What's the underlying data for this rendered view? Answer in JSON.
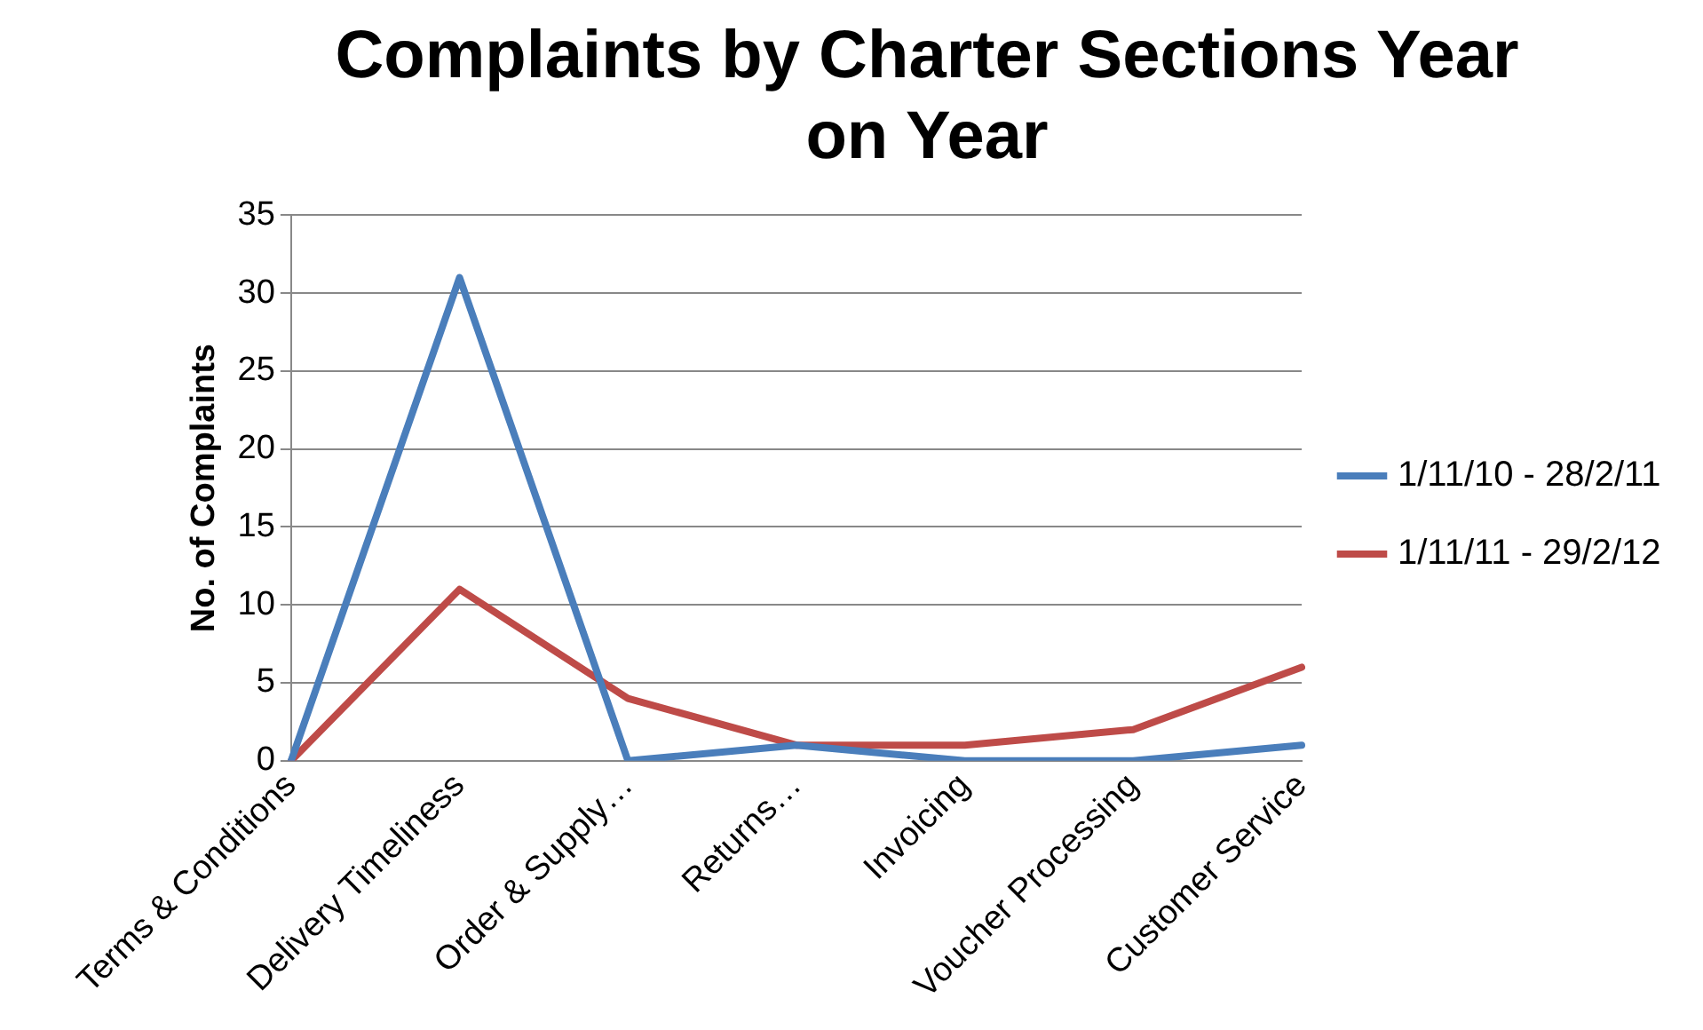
{
  "chart_data": {
    "type": "line",
    "title": [
      "Complaints by Charter Sections Year",
      "on Year"
    ],
    "ylabel": "No. of Complaints",
    "categories": [
      "Terms & Conditions",
      "Delivery Timeliness",
      "Order & Supply…",
      "Returns…",
      "Invoicing",
      "Voucher Processing",
      "Customer Service"
    ],
    "series": [
      {
        "name": "1/11/10 - 28/2/11",
        "color": "#4a7ebb",
        "values": [
          0,
          31,
          0,
          1,
          0,
          0,
          1
        ]
      },
      {
        "name": "1/11/11 - 29/2/12",
        "color": "#be4b48",
        "values": [
          0,
          11,
          4,
          1,
          1,
          2,
          6
        ]
      }
    ],
    "ylim": [
      0,
      35
    ],
    "yticks": [
      0,
      5,
      10,
      15,
      20,
      25,
      30,
      35
    ],
    "grid": "y",
    "legend": "right",
    "marker": "none",
    "line_style": "solid"
  }
}
